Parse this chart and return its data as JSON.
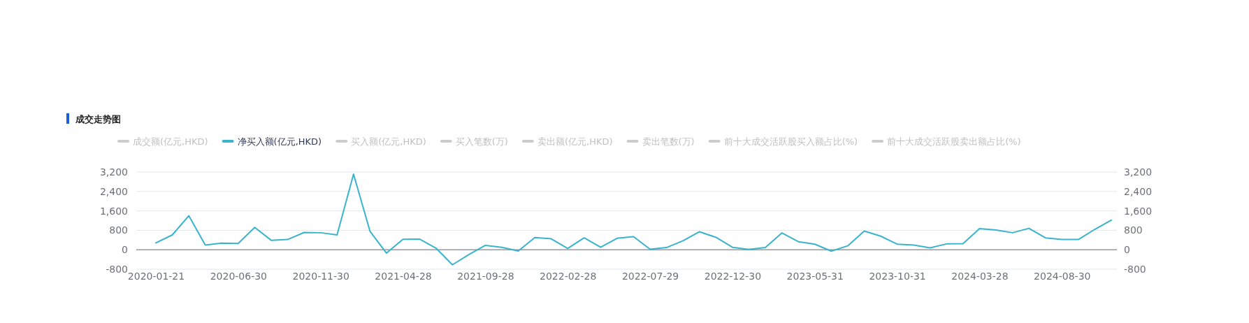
{
  "chart_data": {
    "type": "line",
    "title": "成交走势图",
    "categories": [
      "2020-01-21",
      null,
      null,
      null,
      null,
      "2020-06-30",
      null,
      null,
      null,
      null,
      "2020-11-30",
      null,
      null,
      null,
      null,
      "2021-04-28",
      null,
      null,
      null,
      null,
      "2021-09-28",
      null,
      null,
      null,
      null,
      "2022-02-28",
      null,
      null,
      null,
      null,
      "2022-07-29",
      null,
      null,
      null,
      null,
      "2022-12-30",
      null,
      null,
      null,
      null,
      "2023-05-31",
      null,
      null,
      null,
      null,
      "2023-10-31",
      null,
      null,
      null,
      null,
      "2024-03-28",
      null,
      null,
      null,
      null,
      "2024-08-30",
      null,
      null,
      null
    ],
    "series": [
      {
        "name": "成交额(亿元,HKD)",
        "color": "#cccccc",
        "values": [
          null,
          null,
          null,
          null,
          null,
          null,
          null,
          null,
          null,
          null,
          null,
          null,
          null,
          null,
          null,
          null,
          null,
          null,
          null,
          null,
          null,
          null,
          null,
          null,
          null,
          null,
          null,
          null,
          null,
          null,
          null,
          null,
          null,
          null,
          null,
          null,
          null,
          null,
          null,
          null,
          null,
          null,
          null,
          null,
          null,
          null,
          null,
          null,
          null,
          null,
          null,
          null,
          null,
          null,
          null,
          null,
          null,
          null,
          null
        ]
      },
      {
        "name": "净买入额(亿元,HKD)",
        "color": "#3ab3cc",
        "values": [
          280,
          610,
          1400,
          190,
          270,
          260,
          920,
          390,
          420,
          710,
          700,
          610,
          3110,
          760,
          -140,
          430,
          440,
          70,
          -620,
          -200,
          180,
          100,
          -50,
          500,
          450,
          50,
          490,
          100,
          470,
          540,
          20,
          90,
          370,
          740,
          510,
          100,
          10,
          90,
          690,
          330,
          230,
          -60,
          160,
          770,
          560,
          230,
          190,
          80,
          240,
          250,
          870,
          810,
          700,
          880,
          490,
          420,
          420,
          840,
          1220
        ]
      },
      {
        "name": "买入额(亿元,HKD)",
        "color": "#cccccc",
        "values": [
          null,
          null,
          null,
          null,
          null,
          null,
          null,
          null,
          null,
          null,
          null,
          null,
          null,
          null,
          null,
          null,
          null,
          null,
          null,
          null,
          null,
          null,
          null,
          null,
          null,
          null,
          null,
          null,
          null,
          null,
          null,
          null,
          null,
          null,
          null,
          null,
          null,
          null,
          null,
          null,
          null,
          null,
          null,
          null,
          null,
          null,
          null,
          null,
          null,
          null,
          null,
          null,
          null,
          null,
          null,
          null,
          null,
          null,
          null
        ]
      },
      {
        "name": "买入笔数(万)",
        "color": "#cccccc",
        "values": [
          null,
          null,
          null,
          null,
          null,
          null,
          null,
          null,
          null,
          null,
          null,
          null,
          null,
          null,
          null,
          null,
          null,
          null,
          null,
          null,
          null,
          null,
          null,
          null,
          null,
          null,
          null,
          null,
          null,
          null,
          null,
          null,
          null,
          null,
          null,
          null,
          null,
          null,
          null,
          null,
          null,
          null,
          null,
          null,
          null,
          null,
          null,
          null,
          null,
          null,
          null,
          null,
          null,
          null,
          null,
          null,
          null,
          null,
          null
        ]
      },
      {
        "name": "卖出额(亿元,HKD)",
        "color": "#cccccc",
        "values": [
          null,
          null,
          null,
          null,
          null,
          null,
          null,
          null,
          null,
          null,
          null,
          null,
          null,
          null,
          null,
          null,
          null,
          null,
          null,
          null,
          null,
          null,
          null,
          null,
          null,
          null,
          null,
          null,
          null,
          null,
          null,
          null,
          null,
          null,
          null,
          null,
          null,
          null,
          null,
          null,
          null,
          null,
          null,
          null,
          null,
          null,
          null,
          null,
          null,
          null,
          null,
          null,
          null,
          null,
          null,
          null,
          null,
          null,
          null
        ]
      },
      {
        "name": "卖出笔数(万)",
        "color": "#cccccc",
        "values": [
          null,
          null,
          null,
          null,
          null,
          null,
          null,
          null,
          null,
          null,
          null,
          null,
          null,
          null,
          null,
          null,
          null,
          null,
          null,
          null,
          null,
          null,
          null,
          null,
          null,
          null,
          null,
          null,
          null,
          null,
          null,
          null,
          null,
          null,
          null,
          null,
          null,
          null,
          null,
          null,
          null,
          null,
          null,
          null,
          null,
          null,
          null,
          null,
          null,
          null,
          null,
          null,
          null,
          null,
          null,
          null,
          null,
          null,
          null
        ]
      },
      {
        "name": "前十大成交活跃股买入额占比(%)",
        "color": "#cccccc",
        "values": [
          null,
          null,
          null,
          null,
          null,
          null,
          null,
          null,
          null,
          null,
          null,
          null,
          null,
          null,
          null,
          null,
          null,
          null,
          null,
          null,
          null,
          null,
          null,
          null,
          null,
          null,
          null,
          null,
          null,
          null,
          null,
          null,
          null,
          null,
          null,
          null,
          null,
          null,
          null,
          null,
          null,
          null,
          null,
          null,
          null,
          null,
          null,
          null,
          null,
          null,
          null,
          null,
          null,
          null,
          null,
          null,
          null,
          null,
          null
        ]
      },
      {
        "name": "前十大成交活跃股卖出额占比(%)",
        "color": "#cccccc",
        "values": [
          null,
          null,
          null,
          null,
          null,
          null,
          null,
          null,
          null,
          null,
          null,
          null,
          null,
          null,
          null,
          null,
          null,
          null,
          null,
          null,
          null,
          null,
          null,
          null,
          null,
          null,
          null,
          null,
          null,
          null,
          null,
          null,
          null,
          null,
          null,
          null,
          null,
          null,
          null,
          null,
          null,
          null,
          null,
          null,
          null,
          null,
          null,
          null,
          null,
          null,
          null,
          null,
          null,
          null,
          null,
          null,
          null,
          null,
          null
        ]
      }
    ],
    "ylim": [
      -800,
      3200
    ],
    "yticks": [
      {
        "value": -800,
        "label": "-800"
      },
      {
        "value": 0,
        "label": "0"
      },
      {
        "value": 800,
        "label": "800"
      },
      {
        "value": 1600,
        "label": "1,600"
      },
      {
        "value": 2400,
        "label": "2,400"
      },
      {
        "value": 3200,
        "label": "3,200"
      }
    ],
    "y2lim": [
      -800,
      3200
    ],
    "y2ticks": [
      {
        "value": -800,
        "label": "-800"
      },
      {
        "value": 0,
        "label": "0"
      },
      {
        "value": 800,
        "label": "800"
      },
      {
        "value": 1600,
        "label": "1,600"
      },
      {
        "value": 2400,
        "label": "2,400"
      },
      {
        "value": 3200,
        "label": "3,200"
      }
    ],
    "grid": "y",
    "legend": "top",
    "marker": "none",
    "line_style": "solid"
  }
}
